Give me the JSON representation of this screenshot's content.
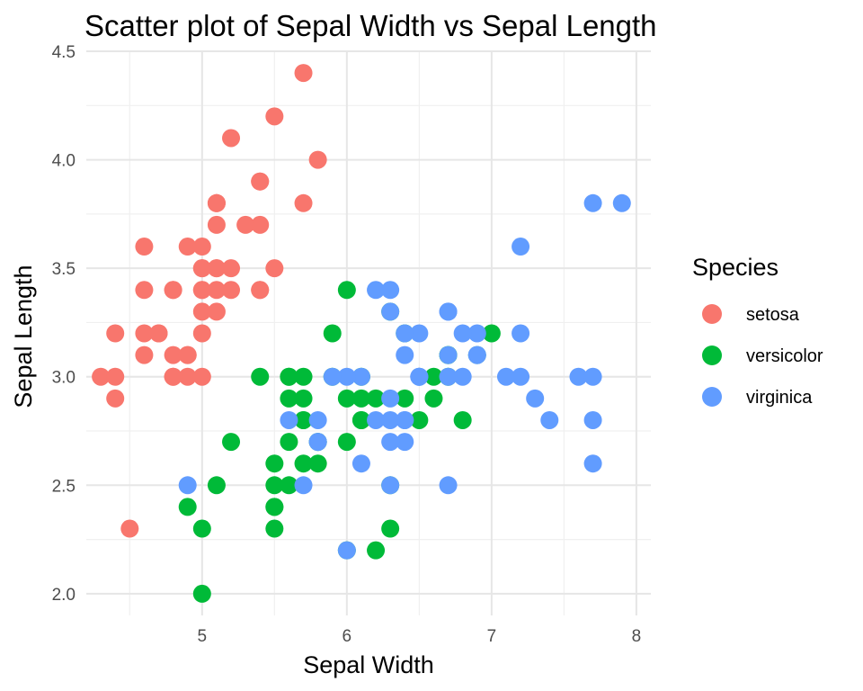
{
  "chart_data": {
    "type": "scatter",
    "title": "Scatter plot of Sepal Width vs Sepal Length",
    "xlabel": "Sepal Width",
    "ylabel": "Sepal Length",
    "xlim": [
      4.2,
      8.1
    ],
    "ylim": [
      1.9,
      4.5
    ],
    "x_ticks": [
      5,
      6,
      7,
      8
    ],
    "y_ticks": [
      "2.0",
      "2.5",
      "3.0",
      "3.5",
      "4.0",
      "4.5"
    ],
    "grid": true,
    "legend": {
      "title": "Species",
      "position": "right"
    },
    "series": [
      {
        "name": "setosa",
        "color": "#F8766D",
        "points": [
          [
            5.1,
            3.5
          ],
          [
            4.9,
            3.0
          ],
          [
            4.7,
            3.2
          ],
          [
            4.6,
            3.1
          ],
          [
            5.0,
            3.6
          ],
          [
            5.4,
            3.9
          ],
          [
            4.6,
            3.4
          ],
          [
            5.0,
            3.4
          ],
          [
            4.4,
            2.9
          ],
          [
            4.9,
            3.1
          ],
          [
            5.4,
            3.7
          ],
          [
            4.8,
            3.4
          ],
          [
            4.8,
            3.0
          ],
          [
            4.3,
            3.0
          ],
          [
            5.8,
            4.0
          ],
          [
            5.7,
            4.4
          ],
          [
            5.4,
            3.9
          ],
          [
            5.1,
            3.5
          ],
          [
            5.7,
            3.8
          ],
          [
            5.1,
            3.8
          ],
          [
            5.4,
            3.4
          ],
          [
            5.1,
            3.7
          ],
          [
            4.6,
            3.6
          ],
          [
            5.1,
            3.3
          ],
          [
            4.8,
            3.4
          ],
          [
            5.0,
            3.0
          ],
          [
            5.0,
            3.4
          ],
          [
            5.2,
            3.5
          ],
          [
            5.2,
            3.4
          ],
          [
            4.7,
            3.2
          ],
          [
            4.8,
            3.1
          ],
          [
            5.4,
            3.4
          ],
          [
            5.2,
            4.1
          ],
          [
            5.5,
            4.2
          ],
          [
            4.9,
            3.1
          ],
          [
            5.0,
            3.2
          ],
          [
            5.5,
            3.5
          ],
          [
            4.9,
            3.6
          ],
          [
            4.4,
            3.0
          ],
          [
            5.1,
            3.4
          ],
          [
            5.0,
            3.5
          ],
          [
            4.5,
            2.3
          ],
          [
            4.4,
            3.2
          ],
          [
            5.0,
            3.5
          ],
          [
            5.1,
            3.8
          ],
          [
            4.8,
            3.0
          ],
          [
            5.1,
            3.8
          ],
          [
            4.6,
            3.2
          ],
          [
            5.3,
            3.7
          ],
          [
            5.0,
            3.3
          ]
        ]
      },
      {
        "name": "versicolor",
        "color": "#00BA38",
        "points": [
          [
            7.0,
            3.2
          ],
          [
            6.4,
            3.2
          ],
          [
            6.9,
            3.1
          ],
          [
            5.5,
            2.3
          ],
          [
            6.5,
            2.8
          ],
          [
            5.7,
            2.8
          ],
          [
            6.3,
            3.3
          ],
          [
            4.9,
            2.4
          ],
          [
            6.6,
            2.9
          ],
          [
            5.2,
            2.7
          ],
          [
            5.0,
            2.0
          ],
          [
            5.9,
            3.0
          ],
          [
            6.0,
            2.2
          ],
          [
            6.1,
            2.9
          ],
          [
            5.6,
            2.9
          ],
          [
            6.7,
            3.1
          ],
          [
            5.6,
            3.0
          ],
          [
            5.8,
            2.7
          ],
          [
            6.2,
            2.2
          ],
          [
            5.6,
            2.5
          ],
          [
            5.9,
            3.2
          ],
          [
            6.1,
            2.8
          ],
          [
            6.3,
            2.5
          ],
          [
            6.1,
            2.8
          ],
          [
            6.4,
            2.9
          ],
          [
            6.6,
            3.0
          ],
          [
            6.8,
            2.8
          ],
          [
            6.7,
            3.0
          ],
          [
            6.0,
            2.9
          ],
          [
            5.7,
            2.6
          ],
          [
            5.5,
            2.4
          ],
          [
            5.5,
            2.4
          ],
          [
            5.8,
            2.7
          ],
          [
            6.0,
            2.7
          ],
          [
            5.4,
            3.0
          ],
          [
            6.0,
            3.4
          ],
          [
            6.7,
            3.1
          ],
          [
            6.3,
            2.3
          ],
          [
            5.6,
            3.0
          ],
          [
            5.5,
            2.5
          ],
          [
            5.5,
            2.6
          ],
          [
            6.1,
            3.0
          ],
          [
            5.8,
            2.6
          ],
          [
            5.0,
            2.3
          ],
          [
            5.6,
            2.7
          ],
          [
            5.7,
            3.0
          ],
          [
            5.7,
            2.9
          ],
          [
            6.2,
            2.9
          ],
          [
            5.1,
            2.5
          ],
          [
            5.7,
            2.8
          ]
        ]
      },
      {
        "name": "virginica",
        "color": "#619CFF",
        "points": [
          [
            6.3,
            3.3
          ],
          [
            5.8,
            2.7
          ],
          [
            7.1,
            3.0
          ],
          [
            6.3,
            2.9
          ],
          [
            6.5,
            3.0
          ],
          [
            7.6,
            3.0
          ],
          [
            4.9,
            2.5
          ],
          [
            7.3,
            2.9
          ],
          [
            6.7,
            2.5
          ],
          [
            7.2,
            3.6
          ],
          [
            6.5,
            3.2
          ],
          [
            6.4,
            2.7
          ],
          [
            6.8,
            3.0
          ],
          [
            5.7,
            2.5
          ],
          [
            5.8,
            2.8
          ],
          [
            6.4,
            3.2
          ],
          [
            6.5,
            3.0
          ],
          [
            7.7,
            3.8
          ],
          [
            7.7,
            2.6
          ],
          [
            6.0,
            2.2
          ],
          [
            6.9,
            3.2
          ],
          [
            5.6,
            2.8
          ],
          [
            7.7,
            2.8
          ],
          [
            6.3,
            2.7
          ],
          [
            6.7,
            3.3
          ],
          [
            7.2,
            3.2
          ],
          [
            6.2,
            2.8
          ],
          [
            6.1,
            3.0
          ],
          [
            6.4,
            2.8
          ],
          [
            7.2,
            3.0
          ],
          [
            7.4,
            2.8
          ],
          [
            7.9,
            3.8
          ],
          [
            6.4,
            2.8
          ],
          [
            6.3,
            2.8
          ],
          [
            6.1,
            2.6
          ],
          [
            7.7,
            3.0
          ],
          [
            6.3,
            3.4
          ],
          [
            6.4,
            3.1
          ],
          [
            6.0,
            3.0
          ],
          [
            6.9,
            3.1
          ],
          [
            6.7,
            3.1
          ],
          [
            6.9,
            3.1
          ],
          [
            5.8,
            2.7
          ],
          [
            6.8,
            3.2
          ],
          [
            6.7,
            3.3
          ],
          [
            6.7,
            3.0
          ],
          [
            6.3,
            2.5
          ],
          [
            6.5,
            3.0
          ],
          [
            6.2,
            3.4
          ],
          [
            5.9,
            3.0
          ]
        ]
      }
    ]
  }
}
